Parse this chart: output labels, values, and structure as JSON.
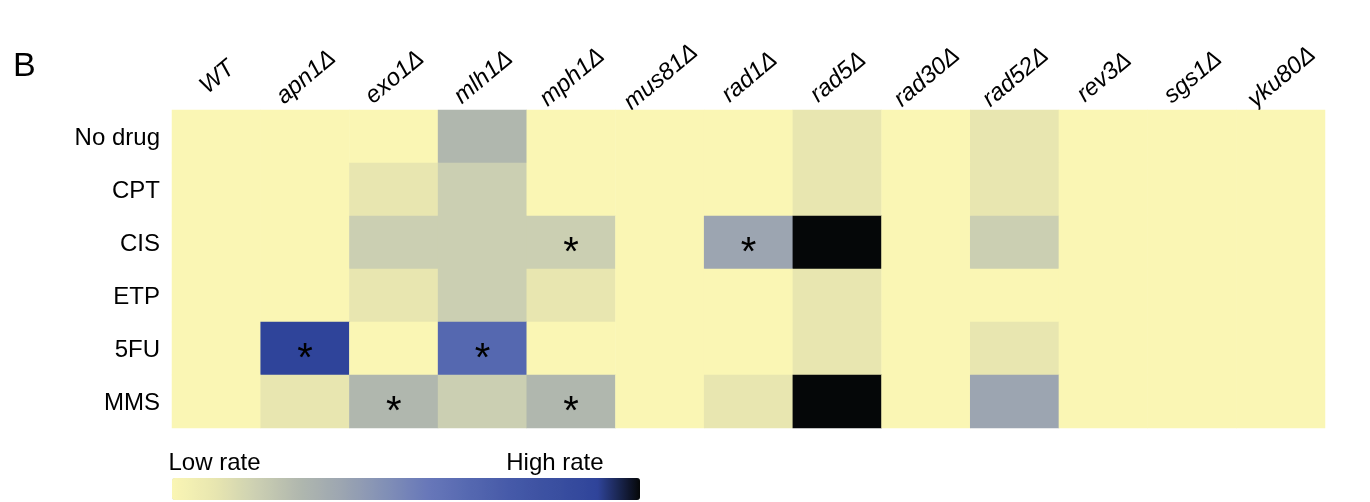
{
  "chart_data": {
    "type": "heatmap",
    "title": "B",
    "categories": [
      "WT",
      "apn1Δ",
      "exo1Δ",
      "mlh1Δ",
      "mph1Δ",
      "mus81Δ",
      "rad1Δ",
      "rad5Δ",
      "rad30Δ",
      "rad52Δ",
      "rev3Δ",
      "sgs1Δ",
      "yku80Δ"
    ],
    "y_categories": [
      "No drug",
      "CPT",
      "CIS",
      "ETP",
      "5FU",
      "MMS"
    ],
    "cells": [
      [
        0,
        0,
        0,
        3,
        0,
        0,
        0,
        1,
        0,
        1,
        0,
        0,
        0
      ],
      [
        0,
        0,
        1,
        2,
        0,
        0,
        0,
        1,
        0,
        1,
        0,
        0,
        0
      ],
      [
        0,
        0,
        2,
        2,
        2,
        0,
        4,
        11,
        0,
        2,
        0,
        0,
        0
      ],
      [
        0,
        0,
        1,
        2,
        1,
        0,
        0,
        1,
        0,
        0,
        0,
        0,
        0
      ],
      [
        0,
        10,
        0,
        7,
        0,
        0,
        0,
        1,
        0,
        1,
        0,
        0,
        0
      ],
      [
        0,
        1,
        3,
        2,
        3,
        0,
        1,
        11,
        0,
        4,
        0,
        0,
        0
      ]
    ],
    "cell_labels": [
      [
        null,
        null,
        null,
        null,
        null,
        null,
        null,
        null,
        null,
        null,
        null,
        null,
        null
      ],
      [
        null,
        null,
        null,
        null,
        null,
        null,
        null,
        null,
        null,
        null,
        null,
        null,
        null
      ],
      [
        null,
        null,
        null,
        null,
        "*",
        null,
        "*",
        null,
        null,
        null,
        null,
        null,
        null
      ],
      [
        null,
        null,
        null,
        null,
        null,
        null,
        null,
        null,
        null,
        null,
        null,
        null,
        null
      ],
      [
        null,
        "*",
        null,
        "*",
        null,
        null,
        null,
        null,
        null,
        null,
        null,
        null,
        null
      ],
      [
        null,
        null,
        "*",
        null,
        "*",
        null,
        null,
        null,
        null,
        null,
        null,
        null,
        null
      ]
    ],
    "clim": [
      0,
      11
    ],
    "cticks": [
      {
        "value": 1,
        "label": "Low rate"
      },
      {
        "value": 9,
        "label": "High rate"
      }
    ],
    "colors": [
      "#faf6b4",
      "#e8e6b0",
      "#cbcfb2",
      "#b0b7ae",
      "#9ca5b1",
      "#8290b6",
      "#6878b9",
      "#5568b0",
      "#4559a8",
      "#3a4fa0",
      "#2f449a",
      "#050708"
    ]
  }
}
